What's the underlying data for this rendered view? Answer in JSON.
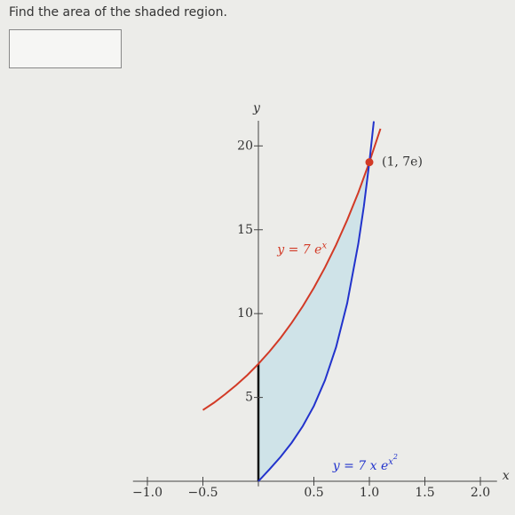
{
  "question": "Find the area of the shaded region.",
  "chart_data": {
    "type": "line",
    "xlabel": "x",
    "ylabel": "y",
    "xlim": [
      -1.13,
      2.15
    ],
    "ylim": [
      -0.3,
      21.5
    ],
    "xticks": [
      {
        "value": -1,
        "label": "−1.0"
      },
      {
        "value": -0.5,
        "label": "−0.5"
      },
      0.5,
      {
        "value": 1,
        "label": "1.0"
      },
      1.5,
      {
        "value": 2,
        "label": "2.0"
      }
    ],
    "yticks": [
      5,
      10,
      15,
      20
    ],
    "series": [
      {
        "label": [
          "y = 7 e",
          "x"
        ],
        "color": "#d23a26",
        "x": [
          -0.5,
          -0.4,
          -0.3,
          -0.2,
          -0.1,
          0,
          0.1,
          0.2,
          0.3,
          0.4,
          0.5,
          0.6,
          0.7,
          0.8,
          0.9,
          1.0,
          1.1
        ],
        "values": [
          4.25,
          4.69,
          5.19,
          5.73,
          6.33,
          7,
          7.74,
          8.55,
          9.45,
          10.44,
          11.54,
          12.75,
          14.1,
          15.58,
          17.21,
          19.03,
          21.03
        ]
      },
      {
        "label": [
          "y = 7 x e",
          "x",
          "2"
        ],
        "color": "#2233cc",
        "x": [
          0,
          0.1,
          0.2,
          0.3,
          0.4,
          0.5,
          0.6,
          0.7,
          0.8,
          0.9,
          0.95,
          1.0,
          1.04
        ],
        "values": [
          0,
          0.71,
          1.46,
          2.3,
          3.29,
          4.49,
          6.02,
          8.0,
          10.62,
          14.16,
          16.4,
          19.03,
          21.47
        ]
      }
    ],
    "point": {
      "x": 1,
      "y": 19.03,
      "label": "(1, 7e)",
      "color": "#d23a26"
    },
    "shade_color": "#cfe3e8"
  }
}
